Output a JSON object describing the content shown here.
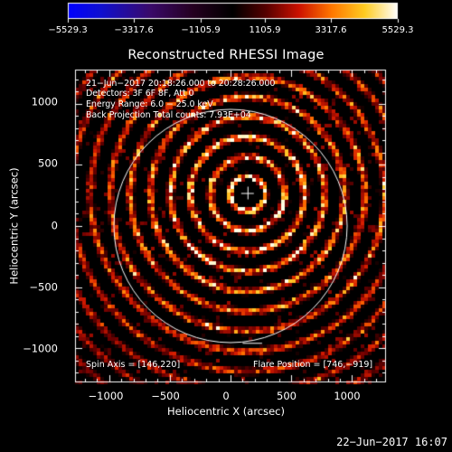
{
  "colorbar": {
    "tick_labels": [
      "−5529.3",
      "−3317.6",
      "−1105.9",
      "1105.9",
      "3317.6",
      "5529.3"
    ],
    "min": -5529.3,
    "max": 5529.3,
    "colors": [
      "#0000ff",
      "#000000",
      "#ff0000",
      "#ffff00",
      "#ffffff"
    ]
  },
  "plot": {
    "title": "Reconstructed RHESSI Image",
    "xlabel": "Heliocentric X (arcsec)",
    "ylabel": "Heliocentric Y (arcsec)",
    "xticks": [
      -1000,
      -500,
      0,
      500,
      1000
    ],
    "xtick_labels": [
      "−1000",
      "−500",
      "0",
      "500",
      "1000"
    ],
    "yticks": [
      1000,
      500,
      0,
      -500,
      -1000
    ],
    "ytick_labels": [
      "1000",
      "500",
      "0",
      "−500",
      "−1000"
    ],
    "xlim": [
      -1280,
      1280
    ],
    "ylim": [
      -1280,
      1280
    ],
    "solar_limb_radius_arcsec": 960,
    "map_center_arcsec": [
      140,
      270
    ],
    "ring_spacing_arcsec": 165,
    "colors": {
      "limb": "#ffffff",
      "axes": "#ffffff",
      "background": "#000000"
    }
  },
  "annotations": {
    "time_range": "21−Jun−2017 20:18:26.000 to 20:28:26.000",
    "detectors": "Detectors: 3F 6F 8F, Att 0",
    "energy_range": "Energy Range: 6.0 − 25.0 keV",
    "method_counts": "Back Projection     Total counts: 7.93E+04",
    "spin_axis": "Spin Axis = [146,220]",
    "flare_position": "Flare Position = [746,−919]"
  },
  "footer": {
    "timestamp": "22−Jun−2017 16:07"
  }
}
